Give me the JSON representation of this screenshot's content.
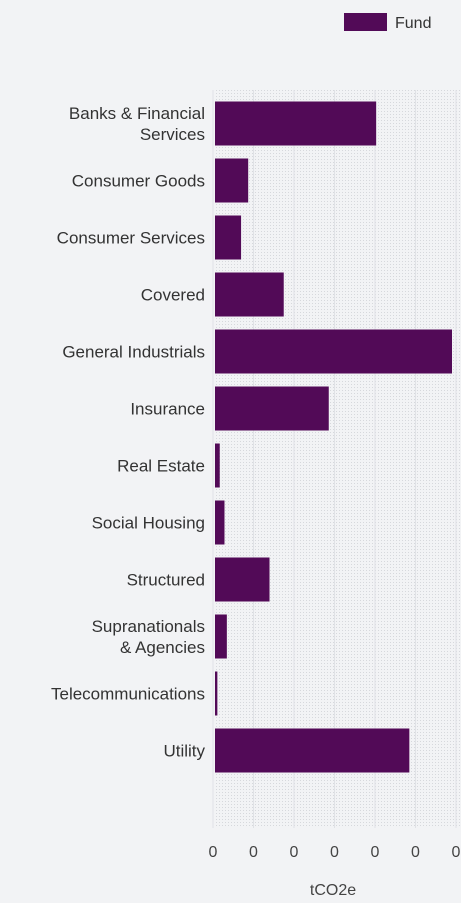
{
  "chart_data": {
    "type": "bar",
    "orientation": "horizontal",
    "categories": [
      [
        "Banks & Financial",
        "Services"
      ],
      [
        "Consumer Goods"
      ],
      [
        "Consumer Services"
      ],
      [
        "Covered"
      ],
      [
        "General Industrials"
      ],
      [
        "Insurance"
      ],
      [
        "Real Estate"
      ],
      [
        "Social Housing"
      ],
      [
        "Structured"
      ],
      [
        "Supranationals",
        "& Agencies"
      ],
      [
        "Telecommunications"
      ],
      [
        "Utility"
      ]
    ],
    "series": [
      {
        "name": "Fund",
        "color": "#520a57",
        "values": [
          0.68,
          0.14,
          0.11,
          0.29,
          1.0,
          0.48,
          0.02,
          0.04,
          0.23,
          0.05,
          0.01,
          0.82
        ]
      }
    ],
    "x_ticks": [
      "0",
      "0",
      "0",
      "0",
      "0",
      "0",
      "0"
    ],
    "xlabel": "tCO2e",
    "xlim": [
      0,
      1.0
    ],
    "grid": true,
    "legend_position": "top-right"
  }
}
